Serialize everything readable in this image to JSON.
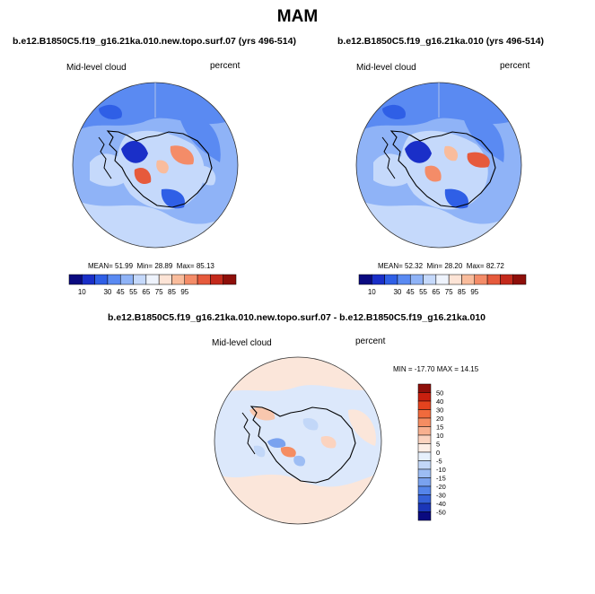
{
  "season_title": "MAM",
  "panels": [
    {
      "title": "b.e12.B1850C5.f19_g16.21ka.010.new.topo.surf.07 (yrs 496-514)",
      "left_label": "Mid-level cloud",
      "right_label": "percent",
      "stats": {
        "mean_label": "MEAN=",
        "mean": "51.99",
        "min_label": "Min=",
        "min": "28.89",
        "max_label": "Max=",
        "max": "85.13"
      }
    },
    {
      "title": "b.e12.B1850C5.f19_g16.21ka.010 (yrs 496-514)",
      "left_label": "Mid-level cloud",
      "right_label": "percent",
      "stats": {
        "mean_label": "MEAN=",
        "mean": "52.32",
        "min_label": "Min=",
        "min": "28.20",
        "max_label": "Max=",
        "max": "82.72"
      }
    },
    {
      "title": "b.e12.B1850C5.f19_g16.21ka.010.new.topo.surf.07 - b.e12.B1850C5.f19_g16.21ka.010",
      "left_label": "Mid-level cloud",
      "right_label": "percent",
      "minmax_text": "MIN = -17.70 MAX =  14.15"
    }
  ],
  "colorbar_abs": {
    "colors": [
      "#0a0a80",
      "#1a2fc8",
      "#2f5fe6",
      "#5a8af2",
      "#8fb3f7",
      "#c5d9fb",
      "#eef3fc",
      "#fde4d6",
      "#f9bc9c",
      "#f48c68",
      "#e65a3c",
      "#c42a1c",
      "#8e0f0a"
    ],
    "labels": [
      "10",
      "30",
      "45",
      "55",
      "65",
      "75",
      "85",
      "95"
    ],
    "label_positions": [
      1,
      3,
      4,
      5,
      6,
      7,
      8,
      9
    ]
  },
  "colorbar_diff": {
    "labels": [
      "50",
      "40",
      "30",
      "20",
      "15",
      "10",
      "5",
      "0",
      "-5",
      "-10",
      "-15",
      "-20",
      "-30",
      "-40",
      "-50"
    ],
    "colors": [
      "#8e0f0a",
      "#c8200f",
      "#e4431e",
      "#f06a3c",
      "#f58d62",
      "#f8b08f",
      "#fbd3bf",
      "#fdeee6",
      "#e6f0fc",
      "#c2d7f8",
      "#9dbdf4",
      "#7aa2ef",
      "#5585ea",
      "#3561d8",
      "#1b36b8",
      "#0a0a80"
    ]
  },
  "colors": {
    "ocean_abs": "#8fb3f7",
    "ocean_diff": "#dce8fb",
    "coast": "#000000"
  }
}
